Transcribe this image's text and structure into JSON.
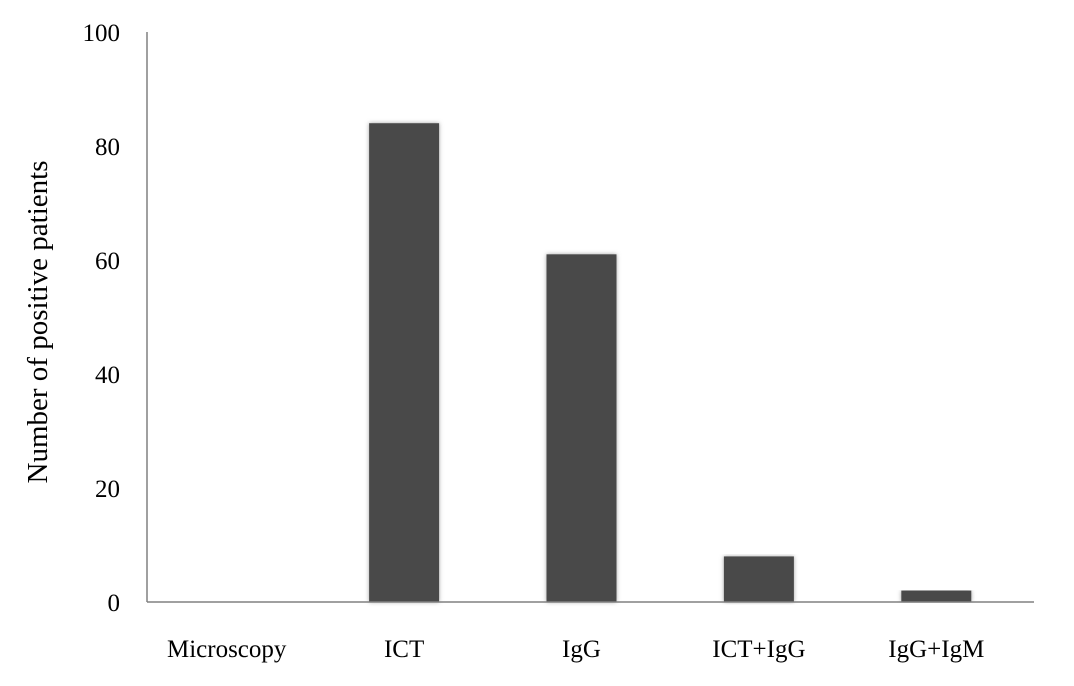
{
  "chart_data": {
    "type": "bar",
    "categories": [
      "Microscopy",
      "ICT",
      "IgG",
      "ICT+IgG",
      "IgG+IgM"
    ],
    "values": [
      0,
      84,
      61,
      8,
      2
    ],
    "title": "",
    "xlabel": "",
    "ylabel": "Number of positive patients",
    "ylim": [
      0,
      100
    ],
    "yticks": [
      0,
      20,
      40,
      60,
      80,
      100
    ],
    "grid": false,
    "legend": "none",
    "bar_color": "#4a4a4a",
    "axis_color": "#808080"
  }
}
